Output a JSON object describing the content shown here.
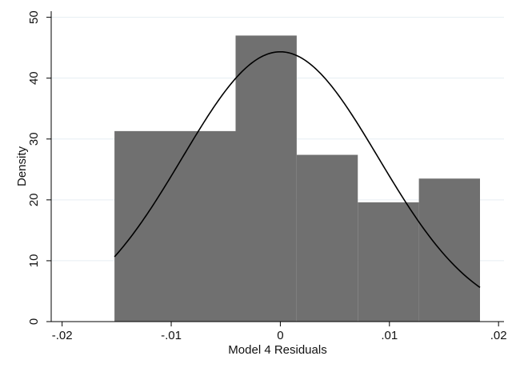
{
  "chart_data": {
    "type": "bar",
    "subtype": "histogram-with-density-curve",
    "title": "",
    "xlabel": "Model 4 Residuals",
    "ylabel": "Density",
    "xlim": [
      -0.021,
      0.0205
    ],
    "ylim": [
      0,
      51
    ],
    "x_ticks": [
      -0.02,
      -0.01,
      0,
      0.01,
      0.02
    ],
    "x_tick_labels": [
      "-.02",
      "-.01",
      "0",
      ".01",
      ".02"
    ],
    "y_ticks": [
      0,
      10,
      20,
      30,
      40,
      50
    ],
    "y_tick_labels": [
      "0",
      "10",
      "20",
      "30",
      "40",
      "50"
    ],
    "bins": [
      {
        "x0": -0.0152,
        "x1": -0.0041,
        "density": 31.3
      },
      {
        "x0": -0.0041,
        "x1": 0.0015,
        "density": 47.0
      },
      {
        "x0": 0.0015,
        "x1": 0.0071,
        "density": 27.4
      },
      {
        "x0": 0.0071,
        "x1": 0.0127,
        "density": 19.6
      },
      {
        "x0": 0.0127,
        "x1": 0.0183,
        "density": 23.5
      }
    ],
    "density_curve": {
      "type": "normal",
      "mean": 0.0,
      "sd": 0.009,
      "x_range": [
        -0.0152,
        0.0183
      ]
    },
    "grid": "horizontal",
    "legend": "none",
    "colors": {
      "bar": "#707070",
      "curve": "#000000",
      "plot_background": "#ffffff",
      "page_background": "#ffffff",
      "grid": "#e6eef3",
      "axis": "#000000"
    }
  }
}
